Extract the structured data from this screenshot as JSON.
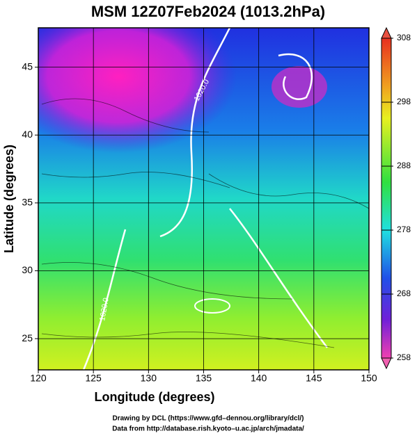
{
  "map": {
    "title": "MSM 12Z07Feb2024 (1013.2hPa)",
    "xlabel": "Longitude (degrees)",
    "ylabel": "Latitude  (degrees)",
    "xlim": [
      120,
      150
    ],
    "ylim": [
      22.7,
      47.9
    ],
    "xticks": [
      120,
      125,
      130,
      135,
      140,
      145,
      150
    ],
    "yticks": [
      25,
      30,
      35,
      40,
      45
    ],
    "colorbar": {
      "lim": [
        258,
        308
      ],
      "ticks": [
        258,
        268,
        278,
        288,
        298,
        308
      ]
    },
    "contour_labels": [
      "1020.0",
      "1020.0"
    ],
    "credits": [
      "Drawing by DCL (https://www.gfd–dennou.org/library/dcl/)",
      "Data from http://database.rish.kyoto–u.ac.jp/arch/jmadata/"
    ]
  }
}
